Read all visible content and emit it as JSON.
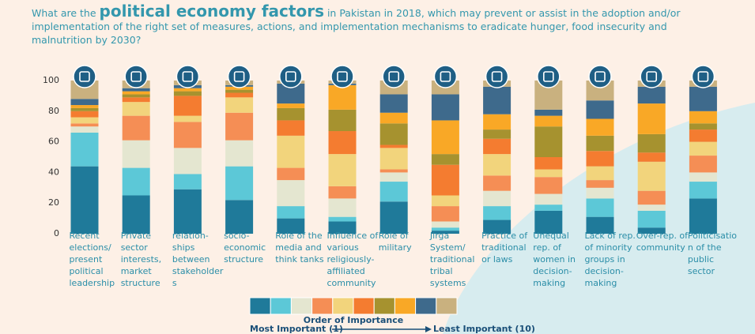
{
  "chart_data": {
    "type": "stacked_bar",
    "title_parts": [
      "What are the",
      "political economy factors",
      "in Pakistan in 2018, which may prevent or assist in the adoption and/or implementation of the right set of measures, actions, and implementation mechanisms to eradicate hunger, food insecurity and malnutrition by 2030?"
    ],
    "categories": [
      "Recent elections/ present political leadership",
      "Private sector interests, market structure",
      "relation-ships between stakeholders",
      "socio-economic structure",
      "Role of the media and think tanks",
      "Influence of various religiously-affiliated community",
      "Role of military",
      "Jirga System/ traditional tribal systems",
      "Practice of traditional or laws",
      "Unequal rep. of women in decision-making",
      "Lack of rep. of minority groups in decision-making",
      "Over-rep. of community",
      "Politicisation of the public sector"
    ],
    "series": [
      {
        "color": "#1f7a9a",
        "values": [
          44,
          25,
          29,
          22,
          10,
          8,
          21,
          2,
          9,
          15,
          11,
          4,
          23
        ]
      },
      {
        "color": "#5cc8d7",
        "values": [
          22,
          18,
          10,
          22,
          8,
          3,
          13,
          2,
          9,
          4,
          12,
          11,
          11
        ]
      },
      {
        "color": "#e4e6d0",
        "values": [
          4,
          18,
          17,
          17,
          17,
          12,
          6,
          4,
          10,
          7,
          7,
          4,
          6
        ]
      },
      {
        "color": "#f58e55",
        "values": [
          2,
          16,
          17,
          18,
          8,
          8,
          2,
          10,
          10,
          11,
          5,
          9,
          11
        ]
      },
      {
        "color": "#f2d47c",
        "values": [
          4,
          9,
          4,
          10,
          21,
          21,
          14,
          7,
          14,
          5,
          9,
          19,
          9
        ]
      },
      {
        "color": "#f47c30",
        "values": [
          4,
          3,
          13,
          3,
          10,
          15,
          2,
          20,
          10,
          8,
          10,
          6,
          8
        ]
      },
      {
        "color": "#a6922f",
        "values": [
          2,
          2,
          3,
          2,
          8,
          14,
          14,
          7,
          6,
          20,
          10,
          12,
          4
        ]
      },
      {
        "color": "#f9a826",
        "values": [
          2,
          2,
          2,
          2,
          3,
          16,
          7,
          22,
          10,
          7,
          11,
          20,
          8
        ]
      },
      {
        "color": "#3e6a8c",
        "values": [
          4,
          2,
          2,
          1,
          13,
          1,
          12,
          17,
          18,
          4,
          12,
          11,
          16
        ]
      },
      {
        "color": "#c9b17f",
        "values": [
          12,
          5,
          3,
          3,
          2,
          2,
          9,
          9,
          4,
          19,
          13,
          4,
          4
        ]
      }
    ],
    "ylim": [
      0,
      100
    ],
    "yticks": [
      0,
      20,
      40,
      60,
      80,
      100
    ],
    "grid": false,
    "legend": {
      "title": "Order of Importance",
      "low": "Most Important (1)",
      "high": "Least Important (10)"
    }
  }
}
